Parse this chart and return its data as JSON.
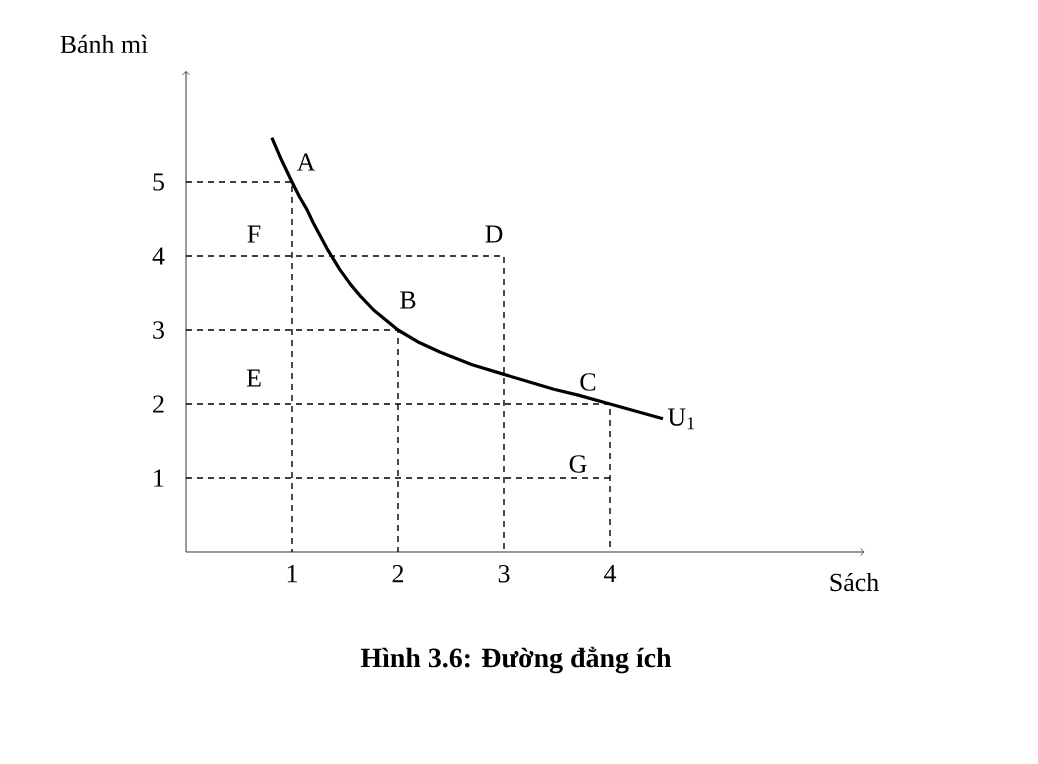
{
  "chart_data": {
    "type": "line",
    "title": "Hình 3.6: Đường đẳng ích",
    "xlabel": "Sách",
    "ylabel": "Bánh mì",
    "xlim": [
      0,
      6.4
    ],
    "ylim": [
      0,
      6.5
    ],
    "xticks": [
      1,
      2,
      3,
      4
    ],
    "yticks": [
      1,
      2,
      3,
      4,
      5
    ],
    "marker": "none",
    "series": [
      {
        "name": "U$_{1}$",
        "color": "#000000",
        "line_style": "solid",
        "x": [
          0.81,
          0.9,
          1,
          1.07,
          1.14,
          1.2,
          1.33,
          1.45,
          1.55,
          1.65,
          1.77,
          2,
          2.2,
          2.4,
          2.7,
          3,
          3.47,
          3.7,
          4,
          4.25,
          4.5
        ],
        "values": [
          5.6,
          5.3,
          5,
          4.8,
          4.63,
          4.45,
          4.1,
          3.82,
          3.62,
          3.45,
          3.27,
          3,
          2.83,
          2.7,
          2.53,
          2.4,
          2.2,
          2.12,
          2,
          1.9,
          1.8
        ]
      },
      {
        "color": "#000000",
        "line_style": "dashed",
        "x": [
          0,
          1,
          1
        ],
        "values": [
          5,
          5,
          0
        ]
      },
      {
        "color": "#000000",
        "line_style": "dashed",
        "x": [
          0,
          3,
          3
        ],
        "values": [
          4,
          4,
          0
        ]
      },
      {
        "color": "#000000",
        "line_style": "dashed",
        "x": [
          0,
          2,
          2
        ],
        "values": [
          3,
          3,
          0
        ]
      },
      {
        "color": "#000000",
        "line_style": "dashed",
        "x": [
          0,
          4,
          4
        ],
        "values": [
          2,
          2,
          0
        ]
      },
      {
        "color": "#000000",
        "line_style": "dashed",
        "x": [
          0,
          4
        ],
        "values": [
          1,
          1
        ]
      }
    ],
    "annotations": [
      {
        "text": "A",
        "x": 1,
        "y": 5
      },
      {
        "text": "F",
        "x": 1,
        "y": 4
      },
      {
        "text": "D",
        "x": 3,
        "y": 4
      },
      {
        "text": "B",
        "x": 2,
        "y": 3
      },
      {
        "text": "E",
        "x": 1,
        "y": 2
      },
      {
        "text": "C",
        "x": 4,
        "y": 2
      },
      {
        "text": "G",
        "x": 4,
        "y": 1
      }
    ]
  }
}
